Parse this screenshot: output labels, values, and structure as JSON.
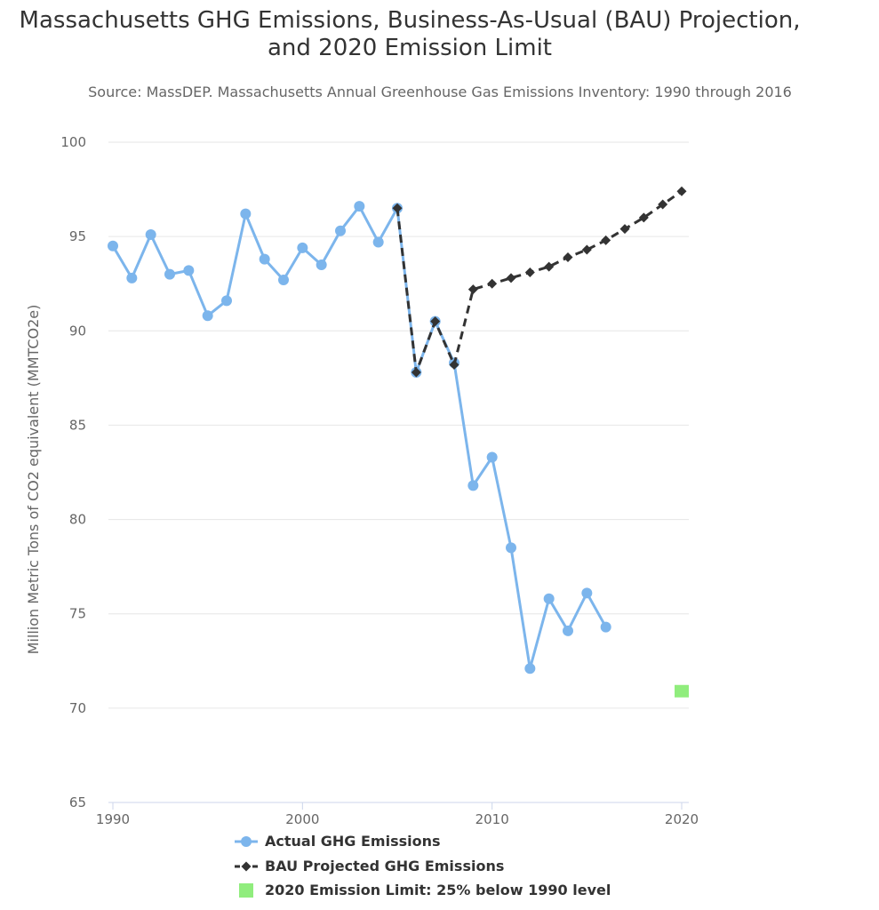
{
  "chart_data": {
    "type": "line",
    "title": "Massachusetts GHG Emissions, Business-As-Usual (BAU) Projection, and 2020 Emission Limit",
    "subtitle": "Source: MassDEP. Massachusetts Annual Greenhouse Gas Emissions Inventory: 1990 through 2016",
    "ylabel": "Million Metric Tons of CO2 equivalent (MMTCO2e)",
    "xlabel": "",
    "xlim": [
      1990,
      2020
    ],
    "ylim": [
      65,
      100
    ],
    "x_ticks": [
      1990,
      2000,
      2010,
      2020
    ],
    "y_ticks": [
      65,
      70,
      75,
      80,
      85,
      90,
      95,
      100
    ],
    "grid": "horizontal",
    "legend_position": "bottom-center",
    "series": [
      {
        "name": "Actual GHG Emissions",
        "color": "#7cb5ec",
        "marker": "circle",
        "dash": "solid",
        "x": [
          1990,
          1991,
          1992,
          1993,
          1994,
          1995,
          1996,
          1997,
          1998,
          1999,
          2000,
          2001,
          2002,
          2003,
          2004,
          2005,
          2006,
          2007,
          2008,
          2009,
          2010,
          2011,
          2012,
          2013,
          2014,
          2015,
          2016
        ],
        "values": [
          94.5,
          92.8,
          95.1,
          93.0,
          93.2,
          90.8,
          91.6,
          96.2,
          93.8,
          92.7,
          94.4,
          93.5,
          95.3,
          96.6,
          94.7,
          96.5,
          87.8,
          90.5,
          88.3,
          81.8,
          83.3,
          78.5,
          72.1,
          75.8,
          74.1,
          76.1,
          74.3
        ]
      },
      {
        "name": "BAU Projected GHG Emissions",
        "color": "#333333",
        "marker": "diamond",
        "dash": "dashed",
        "x": [
          2005,
          2006,
          2007,
          2008,
          2009,
          2010,
          2011,
          2012,
          2013,
          2014,
          2015,
          2016,
          2017,
          2018,
          2019,
          2020
        ],
        "values": [
          96.5,
          87.8,
          90.5,
          88.2,
          92.2,
          92.5,
          92.8,
          93.1,
          93.4,
          93.9,
          94.3,
          94.8,
          95.4,
          96.0,
          96.7,
          97.4
        ]
      },
      {
        "name": "2020 Emission Limit: 25% below 1990 level",
        "color": "#90ed7d",
        "marker": "square",
        "x": [
          2020
        ],
        "values": [
          70.9
        ]
      }
    ]
  }
}
